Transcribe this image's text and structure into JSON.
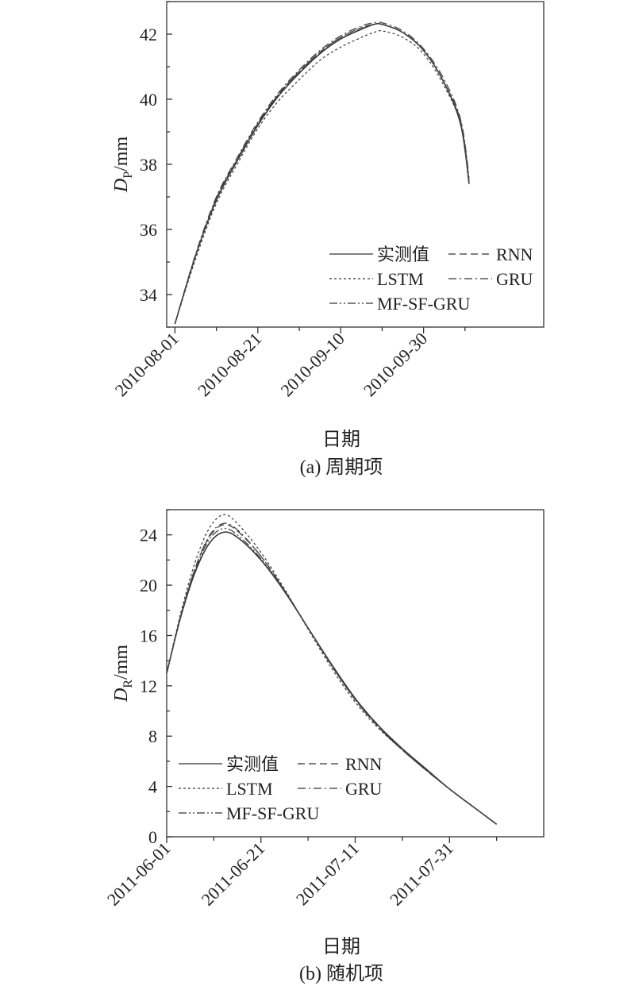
{
  "panels": [
    {
      "caption": "(a) 周期项",
      "ylabel_main": "D",
      "ylabel_sub": "P",
      "ylabel_unit": "/mm",
      "xlabel": "日期",
      "chart_data": {
        "type": "line",
        "x_type": "date",
        "xlim": [
          "2010-07-30",
          "2010-10-29"
        ],
        "ylim": [
          33,
          43
        ],
        "x_ticks": [
          "2010-08-01",
          "2010-08-21",
          "2010-09-10",
          "2010-09-30"
        ],
        "y_ticks": [
          34,
          36,
          38,
          40,
          42
        ],
        "legend_position": "bottom-right",
        "grid": false,
        "x": [
          "2010-08-01",
          "2010-08-06",
          "2010-08-11",
          "2010-08-16",
          "2010-08-21",
          "2010-08-26",
          "2010-08-31",
          "2010-09-05",
          "2010-09-10",
          "2010-09-15",
          "2010-09-18",
          "2010-09-20",
          "2010-09-25",
          "2010-09-30",
          "2010-10-05",
          "2010-10-09",
          "2010-10-11"
        ],
        "series": [
          {
            "name": "实测值",
            "values": [
              33.1,
              35.2,
              36.9,
              38.1,
              39.2,
              40.1,
              40.8,
              41.4,
              41.85,
              42.15,
              42.3,
              42.3,
              42.05,
              41.5,
              40.5,
              39.2,
              37.4
            ]
          },
          {
            "name": "RNN",
            "values": [
              33.1,
              35.2,
              36.95,
              38.15,
              39.25,
              40.15,
              40.85,
              41.45,
              41.9,
              42.2,
              42.3,
              42.3,
              42.05,
              41.5,
              40.5,
              39.3,
              37.5
            ]
          },
          {
            "name": "LSTM",
            "values": [
              33.1,
              35.1,
              36.8,
              38.0,
              39.1,
              39.95,
              40.6,
              41.2,
              41.6,
              41.9,
              42.05,
              42.1,
              41.9,
              41.4,
              40.4,
              39.2,
              37.4
            ]
          },
          {
            "name": "GRU",
            "values": [
              33.1,
              35.25,
              37.0,
              38.2,
              39.3,
              40.2,
              40.9,
              41.5,
              41.95,
              42.25,
              42.35,
              42.35,
              42.1,
              41.55,
              40.6,
              39.35,
              37.6
            ]
          },
          {
            "name": "MF-SF-GRU",
            "values": [
              33.1,
              35.2,
              36.95,
              38.15,
              39.25,
              40.15,
              40.85,
              41.45,
              41.9,
              42.2,
              42.3,
              42.3,
              42.05,
              41.5,
              40.5,
              39.25,
              37.4
            ]
          }
        ]
      },
      "legend": [
        {
          "name": "实测值",
          "dash": "solid"
        },
        {
          "name": "RNN",
          "dash": "dash"
        },
        {
          "name": "LSTM",
          "dash": "dot"
        },
        {
          "name": "GRU",
          "dash": "dashdot"
        },
        {
          "name": "MF-SF-GRU",
          "dash": "dashdotdot"
        }
      ]
    },
    {
      "caption": "(b) 随机项",
      "ylabel_main": "D",
      "ylabel_sub": "R",
      "ylabel_unit": "/mm",
      "xlabel": "日期",
      "chart_data": {
        "type": "line",
        "x_type": "date",
        "xlim": [
          "2011-06-01",
          "2011-08-20"
        ],
        "ylim": [
          0,
          26
        ],
        "x_ticks": [
          "2011-06-01",
          "2011-06-21",
          "2011-07-11",
          "2011-07-31"
        ],
        "y_ticks": [
          0,
          4,
          8,
          12,
          16,
          20,
          24
        ],
        "legend_position": "bottom-left",
        "grid": false,
        "x": [
          "2011-06-01",
          "2011-06-04",
          "2011-06-07",
          "2011-06-10",
          "2011-06-13",
          "2011-06-16",
          "2011-06-21",
          "2011-06-26",
          "2011-07-01",
          "2011-07-06",
          "2011-07-11",
          "2011-07-16",
          "2011-07-21",
          "2011-07-26",
          "2011-07-31",
          "2011-08-05",
          "2011-08-10"
        ],
        "series": [
          {
            "name": "实测值",
            "values": [
              13.0,
              17.5,
              21.0,
              23.3,
              24.2,
              23.8,
              22.0,
              19.5,
              16.6,
              13.7,
              11.0,
              8.8,
              7.0,
              5.4,
              3.8,
              2.4,
              1.0
            ]
          },
          {
            "name": "RNN",
            "values": [
              13.0,
              17.6,
              21.3,
              23.8,
              24.8,
              24.3,
              22.3,
              19.6,
              16.6,
              13.6,
              10.9,
              8.7,
              6.9,
              5.3,
              3.8,
              2.4,
              1.0
            ]
          },
          {
            "name": "LSTM",
            "values": [
              13.0,
              17.8,
              21.8,
              24.5,
              25.6,
              24.9,
              22.6,
              19.7,
              16.5,
              13.4,
              10.7,
              8.6,
              6.9,
              5.3,
              3.8,
              2.4,
              1.0
            ]
          },
          {
            "name": "GRU",
            "values": [
              13.0,
              17.6,
              21.3,
              23.9,
              24.9,
              24.4,
              22.3,
              19.6,
              16.6,
              13.6,
              10.9,
              8.7,
              6.9,
              5.3,
              3.8,
              2.4,
              1.0
            ]
          },
          {
            "name": "MF-SF-GRU",
            "values": [
              13.0,
              17.55,
              21.2,
              23.6,
              24.5,
              24.0,
              22.1,
              19.5,
              16.6,
              13.65,
              10.95,
              8.75,
              6.95,
              5.35,
              3.8,
              2.4,
              1.0
            ]
          }
        ]
      },
      "legend": [
        {
          "name": "实测值",
          "dash": "solid"
        },
        {
          "name": "RNN",
          "dash": "dash"
        },
        {
          "name": "LSTM",
          "dash": "dot"
        },
        {
          "name": "GRU",
          "dash": "dashdot"
        },
        {
          "name": "MF-SF-GRU",
          "dash": "dashdotdot"
        }
      ]
    }
  ]
}
